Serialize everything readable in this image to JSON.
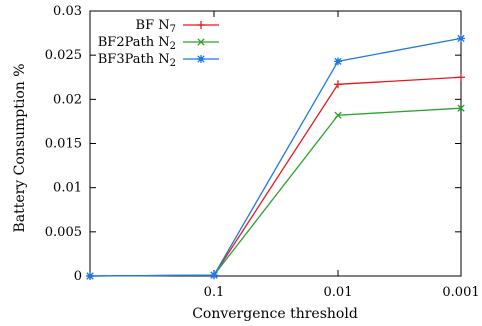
{
  "chart_data": {
    "type": "line",
    "xlabel": "Convergence threshold",
    "ylabel": "Battery Consumption %",
    "x_tick_labels": [
      "",
      "0.1",
      "0.01",
      "0.001"
    ],
    "y_tick_labels": [
      "0",
      "0.005",
      "0.01",
      "0.015",
      "0.02",
      "0.025",
      "0.03"
    ],
    "ylim": [
      0,
      0.03
    ],
    "legend_placement": "top-left",
    "grid": false,
    "series": [
      {
        "name": "BF N",
        "name_sub": "7",
        "color": "#e41a1c",
        "marker": "plus",
        "values": [
          0,
          0.0001,
          0.0217,
          0.0225
        ]
      },
      {
        "name": "BF2Path N",
        "name_sub": "2",
        "color": "#2ca02c",
        "marker": "cross",
        "values": [
          0,
          0.0001,
          0.0182,
          0.019
        ]
      },
      {
        "name": "BF3Path N",
        "name_sub": "2",
        "color": "#1f78e4",
        "marker": "star",
        "values": [
          0,
          0.0001,
          0.0243,
          0.0269
        ]
      }
    ]
  }
}
